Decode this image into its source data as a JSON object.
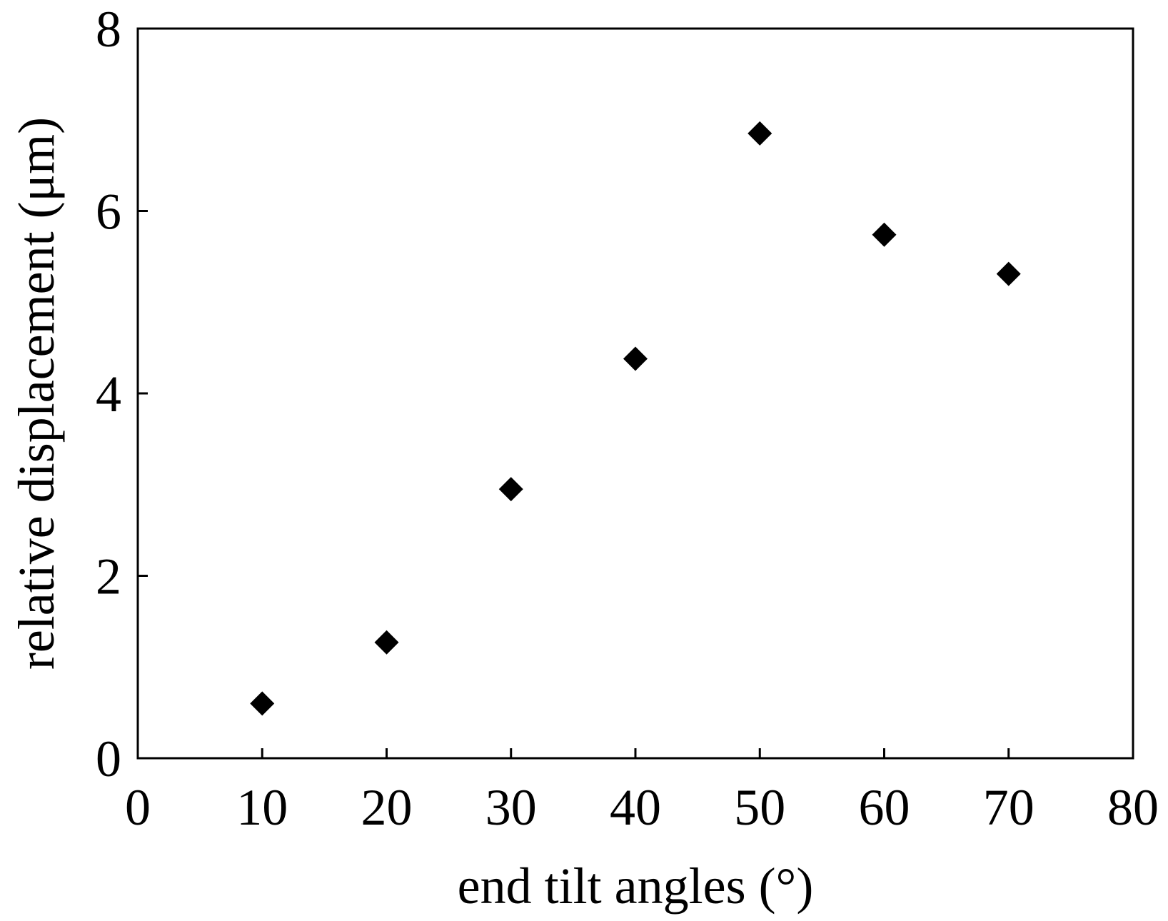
{
  "chart_data": {
    "type": "scatter",
    "title": "",
    "xlabel": "end tilt angles (°)",
    "ylabel": "relative displacement (μm)",
    "xlim": [
      0,
      80
    ],
    "ylim": [
      0,
      8
    ],
    "xticks": [
      0,
      10,
      20,
      30,
      40,
      50,
      60,
      70,
      80
    ],
    "yticks": [
      0,
      2,
      4,
      6,
      8
    ],
    "grid": false,
    "legend": "none",
    "marker": "diamond",
    "color": "#000000",
    "series": [
      {
        "x": [
          10,
          20,
          30,
          40,
          50,
          60,
          70
        ],
        "y": [
          0.6,
          1.27,
          2.95,
          4.38,
          6.85,
          5.74,
          5.31
        ]
      }
    ]
  }
}
